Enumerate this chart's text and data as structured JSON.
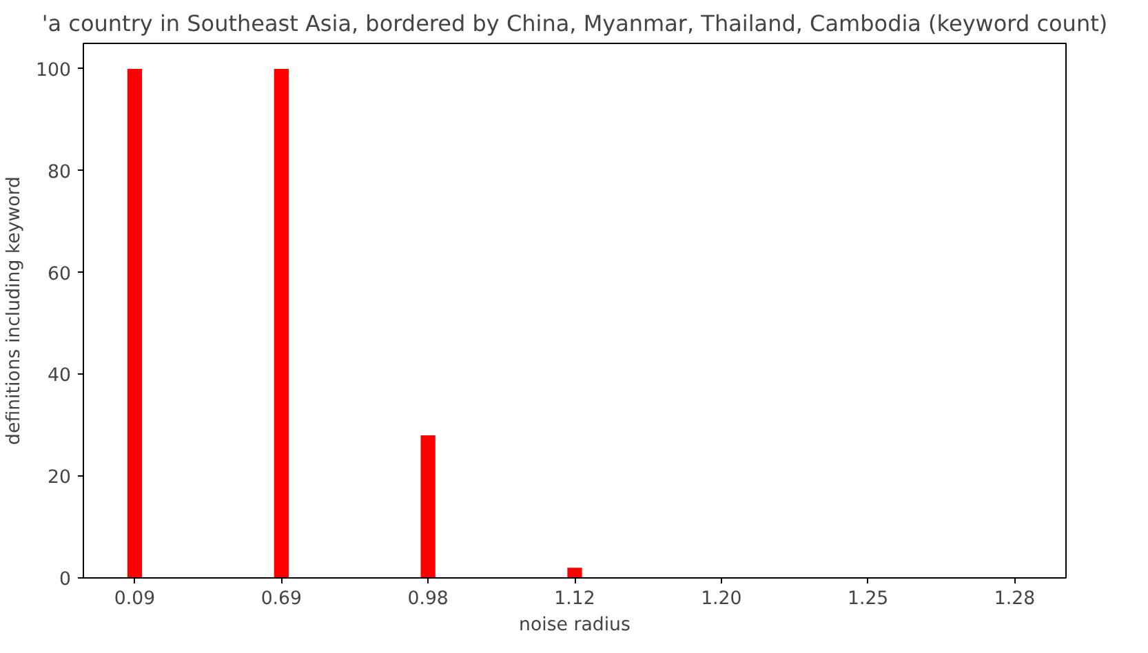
{
  "chart_data": {
    "type": "bar",
    "title": "'a country in Southeast Asia, bordered by China, Myanmar, Thailand, Cambodia (keyword count)",
    "xlabel": "noise radius",
    "ylabel": "definitions including keyword",
    "categories": [
      "0.09",
      "0.69",
      "0.98",
      "1.12",
      "1.20",
      "1.25",
      "1.28"
    ],
    "values": [
      100,
      100,
      28,
      2,
      0,
      0,
      0
    ],
    "color": "#ff0000",
    "ylim": [
      0,
      105
    ],
    "yticks": [
      0,
      20,
      40,
      60,
      80,
      100
    ],
    "grid": false
  }
}
